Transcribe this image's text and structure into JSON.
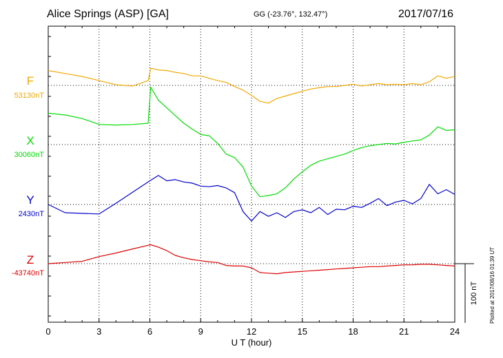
{
  "header": {
    "title": "Alice Springs (ASP)  [GA]",
    "coords": "GG (-23.76°, 132.47°)",
    "date": "2017/07/16"
  },
  "footer": {
    "plotted": "Plotted at 2017/08/16 01:39 UT"
  },
  "chart_data": {
    "type": "line",
    "xlabel": "U T (hour)",
    "xlim": [
      0,
      24
    ],
    "xticks": [
      "0",
      "3",
      "6",
      "9",
      "12",
      "15",
      "18",
      "21",
      "24"
    ],
    "grid": true,
    "scale_bar": {
      "label": "100 nT",
      "value_nT": 100
    },
    "series": [
      {
        "name": "F",
        "baseline_label": "53130nT",
        "baseline_nT": 53130,
        "color": "#f0a800",
        "x": [
          0,
          1,
          2,
          3,
          4,
          5,
          5.9,
          6.05,
          6.5,
          7,
          7.5,
          8,
          8.5,
          9,
          9.5,
          10,
          10.5,
          11,
          11.5,
          12,
          12.5,
          13,
          13.5,
          14,
          14.5,
          15,
          15.5,
          16,
          16.5,
          17,
          17.5,
          18,
          18.5,
          19,
          19.5,
          20,
          20.5,
          21,
          21.5,
          22,
          22.5,
          23,
          23.5,
          24
        ],
        "y": [
          53155,
          53150,
          53145,
          53138,
          53131,
          53129,
          53138,
          53159,
          53156,
          53155,
          53152,
          53150,
          53146,
          53146,
          53142,
          53138,
          53135,
          53128,
          53122,
          53113,
          53103,
          53100,
          53108,
          53112,
          53116,
          53120,
          53124,
          53126,
          53128,
          53128,
          53130,
          53132,
          53129,
          53131,
          53133,
          53131,
          53132,
          53131,
          53133,
          53131,
          53136,
          53146,
          53142,
          53145
        ]
      },
      {
        "name": "X",
        "baseline_label": "30060nT",
        "baseline_nT": 30060,
        "color": "#00dd00",
        "x": [
          0,
          1,
          2,
          3,
          4,
          5,
          5.9,
          6.05,
          6.5,
          7,
          7.5,
          8,
          8.5,
          9,
          9.5,
          10,
          10.5,
          11,
          11.5,
          12,
          12.5,
          13,
          13.5,
          14,
          14.5,
          15,
          15.5,
          16,
          16.5,
          17,
          17.5,
          18,
          18.5,
          19,
          19.5,
          20,
          20.5,
          21,
          21.5,
          22,
          22.5,
          23,
          23.5,
          24
        ],
        "y": [
          30113,
          30110,
          30104,
          30094,
          30093,
          30094,
          30096,
          30157,
          30135,
          30122,
          30109,
          30096,
          30086,
          30077,
          30075,
          30062,
          30044,
          30038,
          30022,
          29990,
          29972,
          29974,
          29977,
          29987,
          30002,
          30014,
          30025,
          30032,
          30036,
          30040,
          30044,
          30050,
          30055,
          30058,
          30060,
          30062,
          30061,
          30064,
          30066,
          30068,
          30076,
          30090,
          30084,
          30085
        ]
      },
      {
        "name": "Y",
        "baseline_label": "2430nT",
        "baseline_nT": 2430,
        "color": "#0000cc",
        "x": [
          0,
          1,
          2,
          3,
          4,
          5,
          5.9,
          6.5,
          7,
          7.5,
          8,
          8.5,
          9,
          9.5,
          10,
          10.5,
          11,
          11.5,
          12,
          12.5,
          13,
          13.5,
          14,
          14.5,
          15,
          15.5,
          16,
          16.5,
          17,
          17.5,
          18,
          18.5,
          19,
          19.5,
          20,
          20.5,
          21,
          21.5,
          22,
          22.5,
          23,
          23.5,
          24
        ],
        "y": [
          2430,
          2416,
          2415,
          2414,
          2432,
          2451,
          2468,
          2479,
          2470,
          2472,
          2468,
          2466,
          2461,
          2460,
          2462,
          2458,
          2450,
          2418,
          2402,
          2418,
          2410,
          2416,
          2408,
          2418,
          2421,
          2416,
          2425,
          2413,
          2422,
          2421,
          2427,
          2425,
          2432,
          2440,
          2428,
          2434,
          2437,
          2431,
          2440,
          2464,
          2448,
          2455,
          2447
        ]
      },
      {
        "name": "Z",
        "baseline_label": "-43740nT",
        "baseline_nT": -43740,
        "color": "#dd0000",
        "x": [
          0,
          1,
          2,
          3,
          4,
          5,
          5.9,
          6.05,
          6.5,
          7,
          7.5,
          8,
          8.5,
          9,
          9.5,
          10,
          10.5,
          11,
          11.5,
          12,
          12.5,
          13,
          13.5,
          14,
          14.5,
          15,
          15.5,
          16,
          16.5,
          17,
          17.5,
          18,
          18.5,
          19,
          19.5,
          20,
          20.5,
          21,
          21.5,
          22,
          22.5,
          23,
          23.5,
          24
        ],
        "y": [
          -43740,
          -43738,
          -43736,
          -43728,
          -43722,
          -43715,
          -43709,
          -43708,
          -43712,
          -43718,
          -43726,
          -43730,
          -43733,
          -43735,
          -43737,
          -43738,
          -43743,
          -43744,
          -43744,
          -43747,
          -43755,
          -43756,
          -43757,
          -43755,
          -43754,
          -43753,
          -43752,
          -43751,
          -43750,
          -43749,
          -43748,
          -43747,
          -43746,
          -43745,
          -43745,
          -43744,
          -43743,
          -43742,
          -43742,
          -43741,
          -43741,
          -43742,
          -43743,
          -43744
        ]
      }
    ]
  }
}
